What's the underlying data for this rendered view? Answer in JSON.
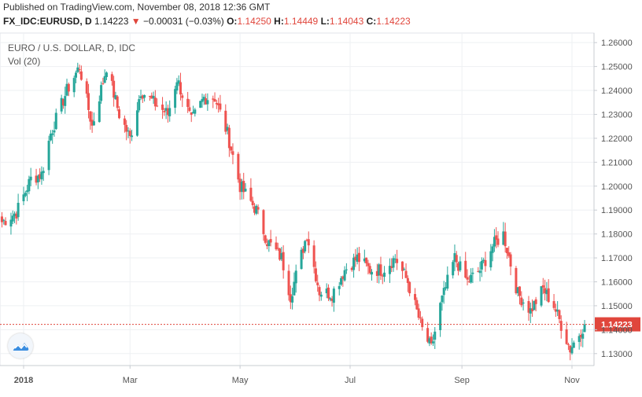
{
  "header": {
    "published": "Published on TradingView.com, November 08, 2018 12:36 GMT",
    "symbol": "FX_IDC:EURUSD, D",
    "last": "1.14223",
    "change_arrow": "▼",
    "change": "−0.00031 (−0.03%)",
    "open_label": "O:",
    "open": "1.14250",
    "high_label": "H:",
    "high": "1.14449",
    "low_label": "L:",
    "low": "1.14043",
    "close_label": "C:",
    "close": "1.14223"
  },
  "legend": {
    "title": "EURO / U.S. DOLLAR, D, IDC",
    "volume": "Vol (20)"
  },
  "colors": {
    "up": "#26a69a",
    "down": "#ef5350",
    "grid": "#eef0f3",
    "axis_text": "#555555",
    "price_line": "#e0463c"
  },
  "logo_icon": "tradingview-cloud-icon",
  "chart_data": {
    "type": "candlestick",
    "title": "EURO / U.S. DOLLAR, D, IDC",
    "price_axis": {
      "ticks": [
        "1.13000",
        "1.14000",
        "1.15000",
        "1.16000",
        "1.17000",
        "1.18000",
        "1.19000",
        "1.20000",
        "1.21000",
        "1.22000",
        "1.23000",
        "1.24000",
        "1.25000",
        "1.26000"
      ],
      "min": 1.125,
      "max": 1.264,
      "current": "1.14223"
    },
    "time_axis": {
      "ticks": [
        {
          "label": "2018",
          "date": "2018-01-01",
          "bold": true
        },
        {
          "label": "Mar",
          "date": "2018-03-01",
          "bold": false
        },
        {
          "label": "May",
          "date": "2018-05-01",
          "bold": false
        },
        {
          "label": "Jul",
          "date": "2018-07-01",
          "bold": false
        },
        {
          "label": "Sep",
          "date": "2018-09-01",
          "bold": false
        },
        {
          "label": "Nov",
          "date": "2018-11-01",
          "bold": false
        }
      ]
    },
    "grid": true,
    "close_series": [
      {
        "date": "2017-12-20",
        "close": 1.185
      },
      {
        "date": "2017-12-28",
        "close": 1.189
      },
      {
        "date": "2018-01-05",
        "close": 1.203
      },
      {
        "date": "2018-01-11",
        "close": 1.205
      },
      {
        "date": "2018-01-16",
        "close": 1.222
      },
      {
        "date": "2018-01-25",
        "close": 1.24
      },
      {
        "date": "2018-02-01",
        "close": 1.25
      },
      {
        "date": "2018-02-08",
        "close": 1.225
      },
      {
        "date": "2018-02-16",
        "close": 1.25
      },
      {
        "date": "2018-02-23",
        "close": 1.23
      },
      {
        "date": "2018-03-01",
        "close": 1.22
      },
      {
        "date": "2018-03-07",
        "close": 1.24
      },
      {
        "date": "2018-03-14",
        "close": 1.235
      },
      {
        "date": "2018-03-22",
        "close": 1.23
      },
      {
        "date": "2018-03-27",
        "close": 1.245
      },
      {
        "date": "2018-04-04",
        "close": 1.227
      },
      {
        "date": "2018-04-11",
        "close": 1.237
      },
      {
        "date": "2018-04-17",
        "close": 1.237
      },
      {
        "date": "2018-04-24",
        "close": 1.222
      },
      {
        "date": "2018-05-01",
        "close": 1.2
      },
      {
        "date": "2018-05-10",
        "close": 1.19
      },
      {
        "date": "2018-05-16",
        "close": 1.177
      },
      {
        "date": "2018-05-24",
        "close": 1.17
      },
      {
        "date": "2018-05-29",
        "close": 1.154
      },
      {
        "date": "2018-06-07",
        "close": 1.18
      },
      {
        "date": "2018-06-14",
        "close": 1.156
      },
      {
        "date": "2018-06-21",
        "close": 1.155
      },
      {
        "date": "2018-06-28",
        "close": 1.165
      },
      {
        "date": "2018-07-05",
        "close": 1.17
      },
      {
        "date": "2018-07-12",
        "close": 1.165
      },
      {
        "date": "2018-07-19",
        "close": 1.165
      },
      {
        "date": "2018-07-26",
        "close": 1.17
      },
      {
        "date": "2018-08-02",
        "close": 1.16
      },
      {
        "date": "2018-08-10",
        "close": 1.14
      },
      {
        "date": "2018-08-15",
        "close": 1.132
      },
      {
        "date": "2018-08-20",
        "close": 1.15
      },
      {
        "date": "2018-08-28",
        "close": 1.17
      },
      {
        "date": "2018-09-04",
        "close": 1.16
      },
      {
        "date": "2018-09-11",
        "close": 1.165
      },
      {
        "date": "2018-09-18",
        "close": 1.175
      },
      {
        "date": "2018-09-24",
        "close": 1.18
      },
      {
        "date": "2018-10-02",
        "close": 1.155
      },
      {
        "date": "2018-10-09",
        "close": 1.148
      },
      {
        "date": "2018-10-16",
        "close": 1.157
      },
      {
        "date": "2018-10-22",
        "close": 1.15
      },
      {
        "date": "2018-10-31",
        "close": 1.132
      },
      {
        "date": "2018-11-08",
        "close": 1.1422
      }
    ]
  }
}
